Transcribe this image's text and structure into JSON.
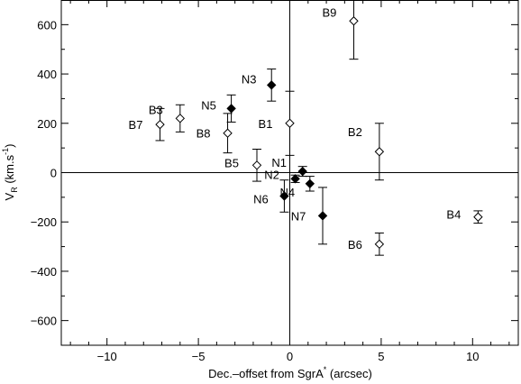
{
  "chart_data": {
    "type": "scatter",
    "xlabel": "Dec.-offset from SgrA* (arcsec)",
    "ylabel": "V_R (km.s^-1)",
    "xlabel_text": {
      "main": "Dec.–offset from SgrA",
      "sup": "*",
      "rest": " (arcsec)"
    },
    "ylabel_text": {
      "main": "V",
      "sub": "R",
      "unit_open": " (km.s",
      "sup": "-1",
      "unit_close": ")"
    },
    "xlim": [
      -12.5,
      12.5
    ],
    "ylim": [
      -700,
      700
    ],
    "xticks": [
      -10,
      -5,
      0,
      5,
      10
    ],
    "xtick_labels": [
      "−10",
      "−5",
      "0",
      "5",
      "10"
    ],
    "yticks": [
      -600,
      -400,
      -200,
      0,
      200,
      400,
      600
    ],
    "ytick_labels": [
      "−600",
      "−400",
      "−200",
      "0",
      "200",
      "400",
      "600"
    ],
    "zero_lines": true,
    "grid": false,
    "series": [
      {
        "marker": "open-diamond",
        "points": [
          {
            "label": "B1",
            "x": 0.0,
            "y": 200,
            "err": 130
          },
          {
            "label": "B2",
            "x": 4.9,
            "y": 85,
            "err": 115
          },
          {
            "label": "B3",
            "x": -6.0,
            "y": 220,
            "err": 55
          },
          {
            "label": "B4",
            "x": 10.3,
            "y": -180,
            "err": 25
          },
          {
            "label": "B5",
            "x": -1.8,
            "y": 30,
            "err": 65
          },
          {
            "label": "B6",
            "x": 4.9,
            "y": -290,
            "err": 45
          },
          {
            "label": "B7",
            "x": -7.1,
            "y": 195,
            "err": 65
          },
          {
            "label": "B8",
            "x": -3.4,
            "y": 160,
            "err": 80
          },
          {
            "label": "B9",
            "x": 3.5,
            "y": 615,
            "err": 155
          }
        ]
      },
      {
        "marker": "filled-diamond",
        "points": [
          {
            "label": "N1",
            "x": 0.7,
            "y": 5,
            "err": 20
          },
          {
            "label": "N2",
            "x": 0.3,
            "y": -25,
            "err": 15
          },
          {
            "label": "N3",
            "x": -1.0,
            "y": 355,
            "err": 65
          },
          {
            "label": "N4",
            "x": 1.1,
            "y": -45,
            "err": 30
          },
          {
            "label": "N5",
            "x": -3.2,
            "y": 260,
            "err": 55
          },
          {
            "label": "N6",
            "x": -0.3,
            "y": -95,
            "err": 65
          },
          {
            "label": "N7",
            "x": 1.8,
            "y": -175,
            "err": 115
          }
        ]
      }
    ]
  }
}
